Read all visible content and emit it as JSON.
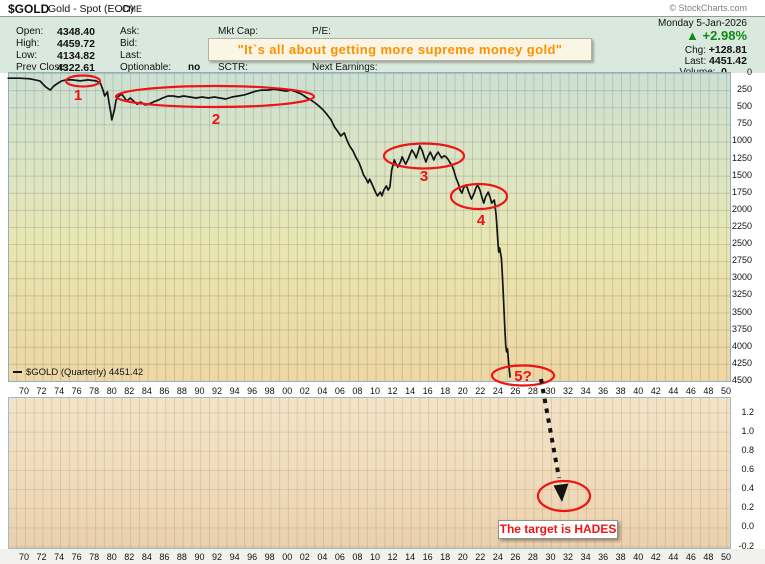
{
  "header": {
    "symbol": "$GOLD",
    "name": "Gold - Spot (EOD)",
    "exchange": "CME",
    "copyright": "© StockCharts.com",
    "date": "Monday 5-Jan-2026",
    "arrow": "▲",
    "pct_change": "+2.98%",
    "left_fields": [
      {
        "label": "Open:",
        "value": "4348.40"
      },
      {
        "label": "High:",
        "value": "4459.72"
      },
      {
        "label": "Low:",
        "value": "4134.82"
      },
      {
        "label": "Prev Close:",
        "value": "4322.61"
      }
    ],
    "mid_fields": [
      {
        "label": "Ask:",
        "value": ""
      },
      {
        "label": "Bid:",
        "value": ""
      },
      {
        "label": "Last:",
        "value": ""
      },
      {
        "label": "Optionable:",
        "value": "no"
      }
    ],
    "misc_fields": {
      "mkt_cap_label": "Mkt Cap:",
      "pe_label": "P/E:",
      "sctr_label": "SCTR:",
      "next_earnings_label": "Next Earnings:"
    },
    "chg_label": "Chg:",
    "chg_value": "+128.81",
    "last_label": "Last:",
    "last_value": "4451.42",
    "volume_label": "Volume:",
    "volume_value": "0",
    "quote": "\"It`s all about getting more supreme money gold\""
  },
  "legend": {
    "text": "$GOLD (Quarterly) 4451.42"
  },
  "annotations": {
    "wave_1": "1",
    "wave_2": "2",
    "wave_3": "3",
    "wave_4": "4",
    "wave_5": "5?",
    "target_text": "The target is HADES"
  },
  "colors": {
    "up_green": "#0e8a12",
    "annotation_red": "#ee1414",
    "quote_orange": "#ff9000",
    "line_black": "#141414"
  },
  "axes": {
    "price_ticks": [
      "0",
      "250",
      "500",
      "750",
      "1000",
      "1250",
      "1500",
      "1750",
      "2000",
      "2250",
      "2500",
      "2750",
      "3000",
      "3250",
      "3500",
      "3750",
      "4000",
      "4250",
      "4500"
    ],
    "indicator_ticks": [
      "1.2",
      "1.0",
      "0.8",
      "0.6",
      "0.4",
      "0.2",
      "0.0",
      "-0.2"
    ],
    "x_ticks": [
      "70",
      "72",
      "74",
      "76",
      "78",
      "80",
      "82",
      "84",
      "86",
      "88",
      "90",
      "92",
      "94",
      "96",
      "98",
      "00",
      "02",
      "04",
      "06",
      "08",
      "10",
      "12",
      "14",
      "16",
      "18",
      "20",
      "22",
      "24",
      "26",
      "28",
      "30",
      "32",
      "34",
      "36",
      "38",
      "40",
      "42",
      "44",
      "46",
      "48",
      "50"
    ]
  },
  "chart_data": {
    "type": "line",
    "title": "$GOLD Gold - Spot (EOD) CME, Quarterly, price axis inverted (0 at top)",
    "xlabel": "year (1970-2050, labeled every 2 years)",
    "ylabel": "price (USD)",
    "x_range": [
      1968.2,
      2051
    ],
    "y_range": [
      0,
      4500
    ],
    "y_inverted": true,
    "y_tick_step": 250,
    "last_value": 4451.42,
    "legend_position": "bottom-left",
    "grid": true,
    "indicator_panel": {
      "y_ticks": [
        1.2,
        1.0,
        0.8,
        0.6,
        0.4,
        0.2,
        0.0,
        -0.2
      ],
      "series": []
    },
    "series": [
      {
        "name": "$GOLD (Quarterly)",
        "points": [
          [
            1968.2,
            90
          ],
          [
            1969.5,
            90
          ],
          [
            1970.7,
            100
          ],
          [
            1971.8,
            130
          ],
          [
            1972.5,
            220
          ],
          [
            1973,
            265
          ],
          [
            1973.4,
            205
          ],
          [
            1973.9,
            160
          ],
          [
            1974.3,
            130
          ],
          [
            1974.8,
            115
          ],
          [
            1975.5,
            115
          ],
          [
            1976.4,
            130
          ],
          [
            1977.3,
            115
          ],
          [
            1978.2,
            130
          ],
          [
            1978.7,
            160
          ],
          [
            1979,
            265
          ],
          [
            1979.2,
            350
          ],
          [
            1979.5,
            290
          ],
          [
            1979.7,
            455
          ],
          [
            1979.9,
            600
          ],
          [
            1980,
            700
          ],
          [
            1980.3,
            555
          ],
          [
            1980.5,
            410
          ],
          [
            1980.7,
            365
          ],
          [
            1981.1,
            320
          ],
          [
            1981.4,
            365
          ],
          [
            1981.7,
            425
          ],
          [
            1982.1,
            380
          ],
          [
            1982.5,
            425
          ],
          [
            1982.9,
            470
          ],
          [
            1983.3,
            440
          ],
          [
            1983.8,
            480
          ],
          [
            1984.2,
            470
          ],
          [
            1984.7,
            440
          ],
          [
            1985.3,
            410
          ],
          [
            1985.8,
            380
          ],
          [
            1986.4,
            350
          ],
          [
            1987,
            350
          ],
          [
            1987.6,
            365
          ],
          [
            1988.2,
            350
          ],
          [
            1988.9,
            365
          ],
          [
            1989.6,
            380
          ],
          [
            1990.3,
            365
          ],
          [
            1991,
            380
          ],
          [
            1991.7,
            365
          ],
          [
            1992.3,
            380
          ],
          [
            1993,
            395
          ],
          [
            1993.7,
            365
          ],
          [
            1994.4,
            350
          ],
          [
            1995.1,
            335
          ],
          [
            1995.8,
            305
          ],
          [
            1996.4,
            280
          ],
          [
            1997.1,
            265
          ],
          [
            1997.8,
            265
          ],
          [
            1998.5,
            250
          ],
          [
            1999.2,
            265
          ],
          [
            1999.9,
            280
          ],
          [
            2000.4,
            265
          ],
          [
            2001,
            290
          ],
          [
            2001.6,
            320
          ],
          [
            2002.1,
            365
          ],
          [
            2002.7,
            410
          ],
          [
            2003.2,
            455
          ],
          [
            2003.6,
            495
          ],
          [
            2004.1,
            555
          ],
          [
            2004.5,
            615
          ],
          [
            2005,
            700
          ],
          [
            2005.4,
            805
          ],
          [
            2005.8,
            875
          ],
          [
            2006.1,
            935
          ],
          [
            2006.5,
            890
          ],
          [
            2006.8,
            995
          ],
          [
            2007.1,
            1080
          ],
          [
            2007.5,
            1155
          ],
          [
            2007.8,
            1240
          ],
          [
            2008.2,
            1330
          ],
          [
            2008.5,
            1430
          ],
          [
            2008.7,
            1505
          ],
          [
            2009,
            1565
          ],
          [
            2009.2,
            1620
          ],
          [
            2009.4,
            1565
          ],
          [
            2009.7,
            1650
          ],
          [
            2009.9,
            1710
          ],
          [
            2010.1,
            1770
          ],
          [
            2010.3,
            1810
          ],
          [
            2010.6,
            1755
          ],
          [
            2010.8,
            1810
          ],
          [
            2011,
            1725
          ],
          [
            2011.3,
            1665
          ],
          [
            2011.5,
            1725
          ],
          [
            2011.7,
            1680
          ],
          [
            2011.9,
            1430
          ],
          [
            2012.2,
            1285
          ],
          [
            2012.4,
            1345
          ],
          [
            2012.6,
            1390
          ],
          [
            2012.9,
            1315
          ],
          [
            2013.1,
            1240
          ],
          [
            2013.3,
            1300
          ],
          [
            2013.5,
            1345
          ],
          [
            2013.8,
            1270
          ],
          [
            2014,
            1200
          ],
          [
            2014.2,
            1140
          ],
          [
            2014.5,
            1200
          ],
          [
            2014.7,
            1255
          ],
          [
            2014.9,
            1170
          ],
          [
            2015.1,
            1080
          ],
          [
            2015.4,
            1155
          ],
          [
            2015.6,
            1240
          ],
          [
            2015.8,
            1315
          ],
          [
            2016,
            1240
          ],
          [
            2016.3,
            1170
          ],
          [
            2016.5,
            1225
          ],
          [
            2016.7,
            1285
          ],
          [
            2016.9,
            1225
          ],
          [
            2017.2,
            1170
          ],
          [
            2017.4,
            1215
          ],
          [
            2017.6,
            1255
          ],
          [
            2017.9,
            1225
          ],
          [
            2018.1,
            1240
          ],
          [
            2018.3,
            1270
          ],
          [
            2018.5,
            1315
          ],
          [
            2018.8,
            1375
          ],
          [
            2019,
            1445
          ],
          [
            2019.2,
            1535
          ],
          [
            2019.5,
            1635
          ],
          [
            2019.7,
            1725
          ],
          [
            2019.9,
            1770
          ],
          [
            2020.1,
            1695
          ],
          [
            2020.4,
            1650
          ],
          [
            2020.6,
            1725
          ],
          [
            2020.8,
            1795
          ],
          [
            2021,
            1855
          ],
          [
            2021.3,
            1770
          ],
          [
            2021.5,
            1695
          ],
          [
            2021.7,
            1650
          ],
          [
            2022,
            1740
          ],
          [
            2022.2,
            1840
          ],
          [
            2022.4,
            1915
          ],
          [
            2022.6,
            1825
          ],
          [
            2022.9,
            1755
          ],
          [
            2023.1,
            1825
          ],
          [
            2023.3,
            1915
          ],
          [
            2023.6,
            1870
          ],
          [
            2023.7,
            1970
          ],
          [
            2023.8,
            2090
          ],
          [
            2023.9,
            2280
          ],
          [
            2024,
            2485
          ],
          [
            2024.1,
            2630
          ],
          [
            2024.2,
            2570
          ],
          [
            2024.4,
            2720
          ],
          [
            2024.5,
            2920
          ],
          [
            2024.6,
            3185
          ],
          [
            2024.7,
            3475
          ],
          [
            2024.8,
            3770
          ],
          [
            2024.9,
            3990
          ],
          [
            2025,
            4090
          ],
          [
            2025.1,
            4045
          ],
          [
            2025.2,
            4205
          ],
          [
            2025.3,
            4350
          ],
          [
            2025.4,
            4455
          ]
        ]
      }
    ],
    "annotations": [
      {
        "type": "ellipse-label",
        "label": "1",
        "meaning": "wave 1 region ~1975-1979"
      },
      {
        "type": "ellipse-label",
        "label": "2",
        "meaning": "wave 2 region ~1981-2004"
      },
      {
        "type": "ellipse-label",
        "label": "3",
        "meaning": "wave 3 region ~2012-2019"
      },
      {
        "type": "ellipse-label",
        "label": "4",
        "meaning": "wave 4 region ~2019-2023"
      },
      {
        "type": "ellipse-label",
        "label": "5?",
        "meaning": "wave 5? at 2025 price 4455"
      },
      {
        "type": "arrow",
        "from_year": 2029,
        "from_price": 4480,
        "note": "dotted arrow into lower panel toward target ellipse"
      },
      {
        "type": "text",
        "label": "The target is HADES"
      }
    ]
  }
}
